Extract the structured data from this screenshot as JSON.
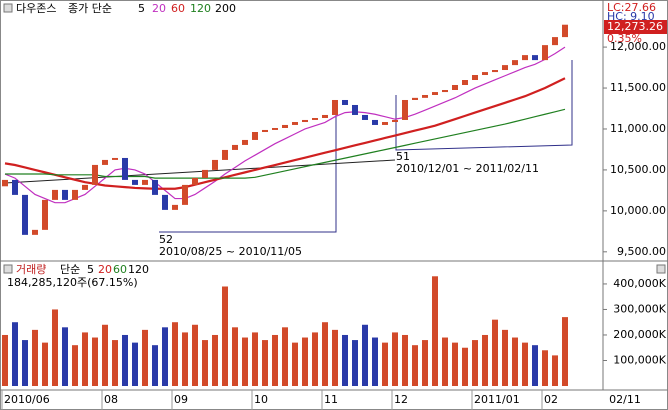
{
  "chart_data": [
    {
      "type": "candlestick",
      "title": "다우존스",
      "ma_label": "종가 단순",
      "legend": [
        "5",
        "20",
        "60",
        "120",
        "200"
      ],
      "legend_colors": [
        "#000000",
        "#c030c0",
        "#d02020",
        "#208020",
        "#000000"
      ],
      "up_color": "#d24a2a",
      "down_color": "#2a3aa8",
      "open": [
        10300,
        10378,
        10195,
        9707,
        9768,
        10134,
        10256,
        10134,
        10256,
        10317,
        10561,
        10622,
        10646,
        10378,
        10317,
        10378,
        10195,
        10012,
        10073,
        10317,
        10402,
        10500,
        10622,
        10744,
        10805,
        10866,
        10963,
        10988,
        11012,
        11049,
        11085,
        11110,
        11134,
        11171,
        11354,
        11293,
        11171,
        11110,
        11049,
        11085,
        11110,
        11354,
        11380,
        11415,
        11451,
        11476,
        11537,
        11598,
        11659,
        11695,
        11720,
        11780,
        11841,
        11902,
        11841,
        12024,
        12122
      ],
      "close": [
        10378,
        10195,
        9707,
        9768,
        10134,
        10256,
        10134,
        10256,
        10317,
        10561,
        10622,
        10646,
        10378,
        10317,
        10378,
        10195,
        10012,
        10073,
        10317,
        10402,
        10500,
        10622,
        10744,
        10805,
        10866,
        10963,
        10988,
        11012,
        11049,
        11085,
        11110,
        11134,
        11171,
        11354,
        11293,
        11171,
        11110,
        11049,
        11085,
        11110,
        11354,
        11380,
        11415,
        11451,
        11476,
        11537,
        11598,
        11659,
        11695,
        11720,
        11780,
        11841,
        11902,
        11841,
        12024,
        12122,
        12273.26
      ],
      "moving_averages": [
        {
          "color": "#c030c0",
          "values": [
            10450,
            10400,
            10300,
            10200,
            10150,
            10100,
            10100,
            10150,
            10200,
            10300,
            10400,
            10500,
            10520,
            10500,
            10450,
            10350,
            10250,
            10150,
            10150,
            10200,
            10280,
            10360,
            10450,
            10530,
            10610,
            10680,
            10750,
            10820,
            10880,
            10940,
            11000,
            11040,
            11080,
            11150,
            11200,
            11210,
            11200,
            11180,
            11150,
            11120,
            11140,
            11180,
            11230,
            11280,
            11330,
            11380,
            11440,
            11500,
            11550,
            11600,
            11650,
            11700,
            11750,
            11790,
            11850,
            11920,
            12000
          ]
        },
        {
          "color": "#d02020",
          "values": [
            10580,
            10560,
            10530,
            10500,
            10470,
            10440,
            10410,
            10380,
            10350,
            10330,
            10310,
            10300,
            10290,
            10280,
            10275,
            10270,
            10270,
            10270,
            10290,
            10320,
            10350,
            10380,
            10410,
            10440,
            10470,
            10500,
            10530,
            10560,
            10590,
            10620,
            10650,
            10680,
            10710,
            10740,
            10770,
            10800,
            10830,
            10860,
            10890,
            10920,
            10950,
            10980,
            11010,
            11040,
            11080,
            11120,
            11160,
            11200,
            11240,
            11280,
            11320,
            11360,
            11400,
            11450,
            11500,
            11560,
            11620
          ]
        },
        {
          "color": "#208020",
          "values": [
            10450,
            10450,
            10450,
            10450,
            10450,
            10440,
            10440,
            10440,
            10440,
            10440,
            10420,
            10420,
            10420,
            10420,
            10420,
            10400,
            10400,
            10400,
            10400,
            10400,
            10400,
            10400,
            10400,
            10400,
            10400,
            10410,
            10436,
            10462,
            10488,
            10514,
            10540,
            10566,
            10592,
            10618,
            10644,
            10670,
            10696,
            10722,
            10748,
            10774,
            10800,
            10826,
            10852,
            10878,
            10904,
            10930,
            10956,
            10982,
            11008,
            11034,
            11060,
            11090,
            11120,
            11150,
            11180,
            11210,
            11240
          ]
        }
      ],
      "last_label": "12,273.26",
      "info_texts": [
        "LC:27.66",
        "HC: 9.10",
        "0.35%"
      ],
      "annotations": [
        "52",
        "2010/08/25 ~ 2010/11/05",
        "51",
        "2010/12/01 ~ 2011/02/11"
      ],
      "ylim": [
        9400,
        12575
      ],
      "yticks": [
        {
          "value": 9500,
          "label": "9,500.00"
        },
        {
          "value": 10000,
          "label": "10,000.00"
        },
        {
          "value": 10500,
          "label": "10,500.00"
        },
        {
          "value": 11000,
          "label": "11,000.00"
        },
        {
          "value": 11500,
          "label": "11,500.00"
        },
        {
          "value": 12000,
          "label": "12,000.00"
        }
      ]
    },
    {
      "type": "bar",
      "title": "거래량",
      "ma_label": "단순",
      "legend": [
        "5",
        "20",
        "60",
        "120"
      ],
      "legend_colors": [
        "#000000",
        "#d02020",
        "#208020",
        "#000000"
      ],
      "subtitle": "184,285,120주(67.15%)",
      "categories": [
        "2010/06",
        null,
        null,
        null,
        null,
        null,
        null,
        null,
        null,
        null,
        "08",
        null,
        null,
        null,
        null,
        null,
        null,
        "09",
        null,
        null,
        null,
        null,
        null,
        null,
        null,
        "10",
        null,
        null,
        null,
        null,
        null,
        null,
        "11",
        null,
        null,
        null,
        null,
        null,
        null,
        "12",
        null,
        null,
        null,
        null,
        null,
        null,
        null,
        "2011/01",
        null,
        null,
        null,
        null,
        null,
        null,
        "02",
        null,
        null
      ],
      "end_label": "02/11",
      "values": [
        200000,
        250000,
        180000,
        220000,
        170000,
        300000,
        230000,
        160000,
        210000,
        190000,
        240000,
        180000,
        200000,
        170000,
        220000,
        160000,
        230000,
        250000,
        210000,
        240000,
        180000,
        200000,
        390000,
        230000,
        190000,
        210000,
        180000,
        200000,
        230000,
        170000,
        190000,
        210000,
        250000,
        220000,
        200000,
        180000,
        240000,
        190000,
        170000,
        210000,
        200000,
        160000,
        180000,
        430000,
        190000,
        170000,
        150000,
        180000,
        200000,
        260000,
        220000,
        190000,
        170000,
        160000,
        140000,
        120000,
        270000
      ],
      "ylim": [
        0,
        486000
      ],
      "yticks": [
        {
          "value": 100000,
          "label": "100,000K"
        },
        {
          "value": 200000,
          "label": "200,000K"
        },
        {
          "value": 300000,
          "label": "300,000K"
        },
        {
          "value": 400000,
          "label": "400,000K"
        }
      ]
    }
  ]
}
